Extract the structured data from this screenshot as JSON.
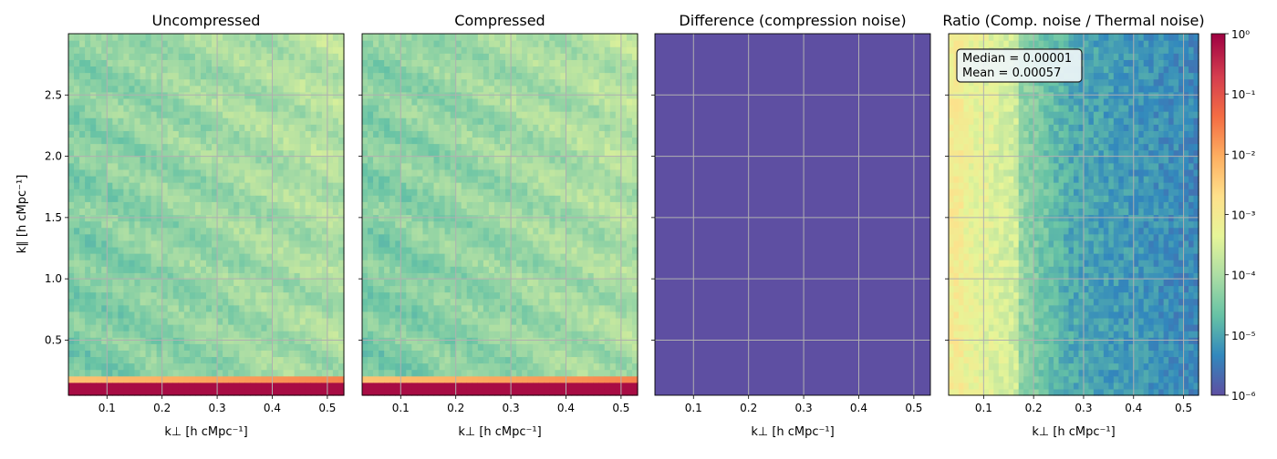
{
  "chart_data": {
    "type": "heatmap",
    "shared_ylabel": "k∥ [h cMpc⁻¹]",
    "xrange": [
      0.03,
      0.53
    ],
    "yrange": [
      0.05,
      3.0
    ],
    "xticks": [
      0.1,
      0.2,
      0.3,
      0.4,
      0.5
    ],
    "xtick_labels": [
      "0.1",
      "0.2",
      "0.3",
      "0.4",
      "0.5"
    ],
    "yticks": [
      0.5,
      1.0,
      1.5,
      2.0,
      2.5
    ],
    "ytick_labels": [
      "0.5",
      "1.0",
      "1.5",
      "2.0",
      "2.5"
    ],
    "grid": true,
    "colormap": "Spectral_r",
    "panels": [
      {
        "title": "Uncompressed",
        "xlabel": "k⊥ [h cMpc⁻¹]",
        "field": "power",
        "description": "green-cyan field with a saturated red band at lowest k∥ (k∥ < 0.15)"
      },
      {
        "title": "Compressed",
        "xlabel": "k⊥ [h cMpc⁻¹]",
        "field": "power",
        "description": "nearly identical to uncompressed"
      },
      {
        "title": "Difference (compression noise)",
        "xlabel": "k⊥ [h cMpc⁻¹]",
        "field": "uniform_low",
        "description": "uniform minimum (deep blue-purple) everywhere"
      },
      {
        "title": "Ratio (Comp. noise / Thermal noise)",
        "xlabel": "k⊥ [h cMpc⁻¹]",
        "field": "ratio",
        "annotation_lines": [
          "Median = 0.00001",
          "Mean = 0.00057"
        ],
        "description": "high ratio (~1e-2..1e-3) at low k⊥, decreasing to ~1e-5..1e-6 at high k⊥"
      }
    ],
    "colorbar": {
      "scale": "log",
      "range": [
        1e-06,
        1
      ],
      "tick_labels": [
        "10⁻⁶",
        "10⁻⁵",
        "10⁻⁴",
        "10⁻³",
        "10⁻²",
        "10⁻¹",
        "10⁰"
      ]
    },
    "palette": [
      "#5e4fa2",
      "#3288bd",
      "#66c2a5",
      "#abdda4",
      "#e6f598",
      "#fee08b",
      "#fdae61",
      "#f46d43",
      "#d53e4f",
      "#9e0142"
    ]
  }
}
